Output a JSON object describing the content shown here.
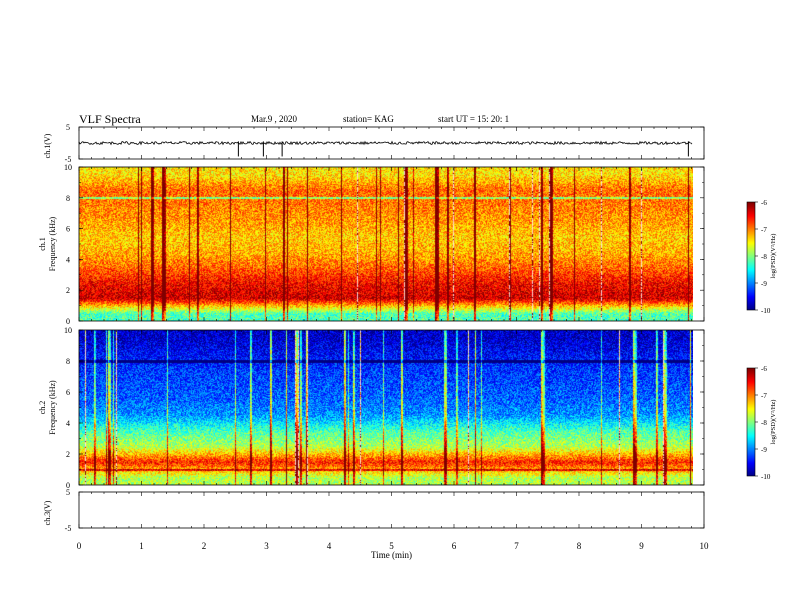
{
  "header": {
    "title": "VLF Spectra",
    "date": "Mar.9 , 2020",
    "station": "station= KAG",
    "start": "start UT = 15: 20: 1"
  },
  "chart_data": [
    {
      "type": "line",
      "panel": "ch1-waveform",
      "ylabel": "ch.1(V)",
      "ylim": [
        -5,
        5
      ],
      "yticks": [
        "5",
        "-5"
      ],
      "baseline": 0,
      "spikes_min": [
        2.55,
        2.95,
        3.25,
        9.75
      ]
    },
    {
      "type": "heatmap",
      "panel": "ch1-spectrogram",
      "ylabel_line1": "ch.1",
      "ylabel_line2": "Frequency (kHz)",
      "ylim": [
        0,
        10
      ],
      "yticks": [
        "0",
        "2",
        "4",
        "6",
        "8",
        "10"
      ],
      "xlim": [
        0,
        10
      ],
      "colorbar": {
        "label": "log(PSD)(V²/Hz)",
        "ticks": [
          "-6",
          "-7",
          "-8",
          "-9",
          "-10"
        ],
        "range": [
          -10,
          -6
        ]
      },
      "band_kHz": [
        {
          "f": 0.5,
          "level": -8.2
        },
        {
          "f": 1.5,
          "level": -6.3
        },
        {
          "f": 2.5,
          "level": -6.5
        },
        {
          "f": 3.5,
          "level": -6.9
        },
        {
          "f": 4.5,
          "level": -7.2
        },
        {
          "f": 5.5,
          "level": -7.3
        },
        {
          "f": 6.5,
          "level": -7.1
        },
        {
          "f": 7.5,
          "level": -7.0
        },
        {
          "f": 8.5,
          "level": -6.9
        },
        {
          "f": 9.5,
          "level": -7.4
        }
      ]
    },
    {
      "type": "heatmap",
      "panel": "ch2-spectrogram",
      "ylabel_line1": "ch.2",
      "ylabel_line2": "Frequency (kHz)",
      "ylim": [
        0,
        10
      ],
      "yticks": [
        "0",
        "2",
        "4",
        "6",
        "8",
        "10"
      ],
      "xlim": [
        0,
        10
      ],
      "colorbar": {
        "label": "log(PSD)(V²/Hz)",
        "ticks": [
          "-6",
          "-7",
          "-8",
          "-9",
          "-10"
        ],
        "range": [
          -10,
          -6
        ]
      },
      "band_kHz": [
        {
          "f": 0.5,
          "level": -7.8
        },
        {
          "f": 1.5,
          "level": -6.6
        },
        {
          "f": 2.5,
          "level": -7.8
        },
        {
          "f": 3.5,
          "level": -8.2
        },
        {
          "f": 4.5,
          "level": -8.9
        },
        {
          "f": 5.5,
          "level": -9.1
        },
        {
          "f": 6.5,
          "level": -9.2
        },
        {
          "f": 7.5,
          "level": -9.3
        },
        {
          "f": 8.5,
          "level": -9.5
        },
        {
          "f": 9.5,
          "level": -9.7
        }
      ]
    },
    {
      "type": "line",
      "panel": "ch3-waveform",
      "ylabel": "ch.3(V)",
      "ylim": [
        -5,
        5
      ],
      "yticks": [
        "5",
        "-5"
      ],
      "baseline": null
    }
  ],
  "xaxis": {
    "label": "Time (min)",
    "range": [
      0,
      10
    ],
    "ticks": [
      "0",
      "1",
      "2",
      "3",
      "4",
      "5",
      "6",
      "7",
      "8",
      "9",
      "10"
    ],
    "data_end_min": 9.82
  }
}
